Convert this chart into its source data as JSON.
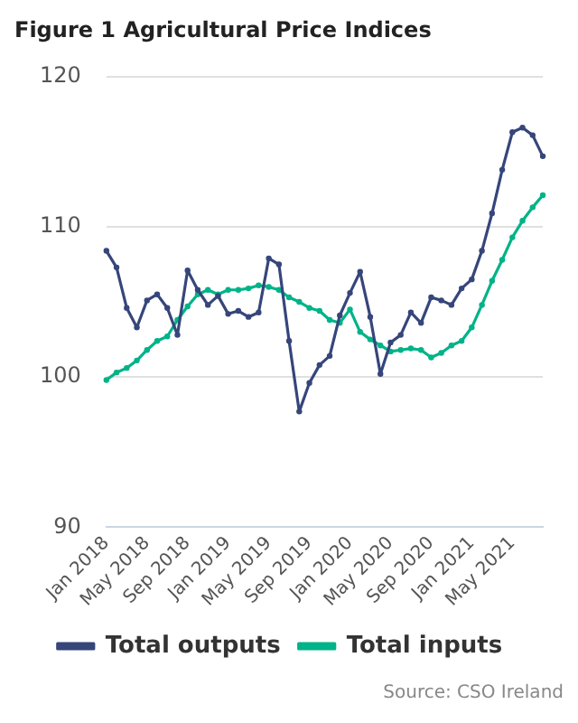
{
  "chart_data": {
    "type": "line",
    "title": "Figure 1 Agricultural Price Indices",
    "categories": [
      "Jan 2018",
      null,
      null,
      null,
      "May 2018",
      null,
      null,
      null,
      "Sep 2018",
      null,
      null,
      null,
      "Jan 2019",
      null,
      null,
      null,
      "May 2019",
      null,
      null,
      null,
      "Sep 2019",
      null,
      null,
      null,
      "Jan 2020",
      null,
      null,
      null,
      "May 2020",
      null,
      null,
      null,
      "Sep 2020",
      null,
      null,
      null,
      "Jan 2021",
      null,
      null,
      null,
      "May 2021",
      null,
      null,
      null
    ],
    "series": [
      {
        "name": "Total outputs",
        "color": "#36467a",
        "values": [
          108.4,
          107.3,
          104.6,
          103.3,
          105.1,
          105.5,
          104.6,
          102.8,
          107.1,
          105.8,
          104.8,
          105.4,
          104.2,
          104.4,
          104.0,
          104.3,
          107.9,
          107.5,
          102.4,
          97.7,
          99.6,
          100.8,
          101.4,
          104.1,
          105.6,
          107.0,
          104.0,
          100.2,
          102.3,
          102.8,
          104.3,
          103.6,
          105.3,
          105.1,
          104.8,
          105.9,
          106.5,
          108.4,
          110.9,
          113.8,
          116.3,
          116.6,
          116.1,
          114.7
        ]
      },
      {
        "name": "Total inputs",
        "color": "#00b388",
        "values": [
          99.8,
          100.3,
          100.6,
          101.1,
          101.8,
          102.4,
          102.7,
          103.8,
          104.7,
          105.5,
          105.8,
          105.5,
          105.8,
          105.8,
          105.9,
          106.1,
          106.0,
          105.8,
          105.3,
          105.0,
          104.6,
          104.4,
          103.8,
          103.6,
          104.5,
          103.0,
          102.5,
          102.1,
          101.7,
          101.8,
          101.9,
          101.8,
          101.3,
          101.6,
          102.1,
          102.4,
          103.3,
          104.8,
          106.4,
          107.8,
          109.3,
          110.4,
          111.3,
          112.1
        ]
      }
    ],
    "ylim": [
      90,
      120
    ],
    "yticks": [
      90,
      100,
      110,
      120
    ],
    "grid": "y",
    "legend": "bottom",
    "marker": "circle",
    "line_style": "solid",
    "annotations": [
      "Source: CSO Ireland"
    ]
  }
}
